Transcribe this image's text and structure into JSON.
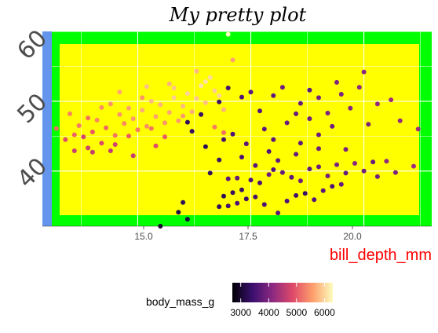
{
  "chart_data": {
    "type": "scatter",
    "title": "My pretty plot",
    "xlabel": "bill_depth_mm",
    "ylabel": "",
    "xlim": [
      13.1,
      21.5
    ],
    "ylim": [
      32.1,
      60.0
    ],
    "x_ticks": [
      15.0,
      17.5,
      20.0
    ],
    "x_tick_labels": [
      "15.0",
      "17.5",
      "20.0"
    ],
    "y_ticks": [
      40,
      50,
      60
    ],
    "y_tick_labels": [
      "40",
      "50",
      "60"
    ],
    "grid": true,
    "legend": {
      "title": "body_mass_g",
      "position": "bottom",
      "type": "colorbar",
      "min": 2700,
      "max": 6300,
      "ticks": [
        3000,
        4000,
        5000,
        6000
      ],
      "tick_labels": [
        "3000",
        "4000",
        "5000",
        "6000"
      ]
    },
    "colors": {
      "panel_background": "#ffff00",
      "plot_background": "#00ff00",
      "y_axis_strip": "#6495ed",
      "gridline": "#ffffff",
      "xlabel": "#ff0000",
      "colormap": "magma"
    },
    "points": [
      [
        15.5,
        32.1,
        3000
      ],
      [
        16.1,
        33.1,
        3100
      ],
      [
        15.9,
        34.1,
        3200
      ],
      [
        16.0,
        35.5,
        3300
      ],
      [
        16.9,
        36.4,
        3300
      ],
      [
        17.1,
        36.9,
        3400
      ],
      [
        17.3,
        37.3,
        3400
      ],
      [
        16.8,
        34.9,
        3350
      ],
      [
        17.0,
        35.0,
        3500
      ],
      [
        17.2,
        35.4,
        3600
      ],
      [
        17.4,
        36.0,
        3450
      ],
      [
        17.6,
        36.3,
        3500
      ],
      [
        17.8,
        35.2,
        3550
      ],
      [
        18.1,
        34.0,
        3700
      ],
      [
        18.3,
        35.7,
        3600
      ],
      [
        18.5,
        36.5,
        3500
      ],
      [
        18.7,
        36.8,
        3400
      ],
      [
        18.9,
        35.9,
        3650
      ],
      [
        19.1,
        37.2,
        3700
      ],
      [
        19.3,
        37.8,
        3600
      ],
      [
        19.5,
        38.1,
        3800
      ],
      [
        17.0,
        38.9,
        3750
      ],
      [
        17.2,
        39.0,
        3800
      ],
      [
        17.5,
        38.7,
        3600
      ],
      [
        17.7,
        38.3,
        3550
      ],
      [
        17.9,
        39.5,
        3900
      ],
      [
        18.0,
        40.2,
        3650
      ],
      [
        18.2,
        39.8,
        3800
      ],
      [
        18.4,
        39.1,
        3700
      ],
      [
        18.6,
        38.6,
        3900
      ],
      [
        18.8,
        40.3,
        3750
      ],
      [
        19.0,
        40.6,
        3850
      ],
      [
        19.2,
        39.3,
        3950
      ],
      [
        19.4,
        40.9,
        4000
      ],
      [
        19.6,
        39.7,
        3800
      ],
      [
        19.8,
        41.1,
        4100
      ],
      [
        20.0,
        40.0,
        3900
      ],
      [
        20.3,
        39.2,
        3950
      ],
      [
        20.5,
        41.4,
        4200
      ],
      [
        20.7,
        39.8,
        4000
      ],
      [
        21.1,
        40.7,
        4300
      ],
      [
        20.2,
        41.3,
        3850
      ],
      [
        18.1,
        41.5,
        3750
      ],
      [
        17.6,
        40.8,
        3700
      ],
      [
        16.6,
        39.7,
        3350
      ],
      [
        16.8,
        41.6,
        3400
      ],
      [
        17.3,
        42.0,
        3550
      ],
      [
        17.9,
        42.8,
        3650
      ],
      [
        18.5,
        42.4,
        3800
      ],
      [
        19.0,
        43.2,
        3900
      ],
      [
        19.6,
        43.1,
        4000
      ],
      [
        17.4,
        43.9,
        3700
      ],
      [
        16.9,
        44.5,
        3500
      ],
      [
        17.1,
        45.3,
        3600
      ],
      [
        17.8,
        46.0,
        3750
      ],
      [
        18.3,
        46.9,
        3850
      ],
      [
        18.8,
        47.5,
        3900
      ],
      [
        19.2,
        48.3,
        4000
      ],
      [
        19.7,
        49.0,
        4100
      ],
      [
        20.3,
        49.6,
        4200
      ],
      [
        20.6,
        50.2,
        4300
      ],
      [
        19.0,
        50.5,
        3950
      ],
      [
        18.6,
        49.7,
        3800
      ],
      [
        17.5,
        51.3,
        3700
      ],
      [
        18.2,
        52.0,
        3900
      ],
      [
        19.4,
        52.7,
        4050
      ],
      [
        20.0,
        54.2,
        4100
      ],
      [
        19.9,
        52.0,
        4150
      ],
      [
        19.5,
        51.0,
        4000
      ],
      [
        18.8,
        51.6,
        3700
      ],
      [
        17.0,
        51.9,
        3500
      ],
      [
        16.8,
        49.9,
        3450
      ],
      [
        17.3,
        50.6,
        3600
      ],
      [
        18.0,
        50.8,
        3750
      ],
      [
        16.4,
        48.1,
        3400
      ],
      [
        16.1,
        47.0,
        3350
      ],
      [
        17.7,
        48.6,
        3650
      ],
      [
        18.5,
        48.2,
        3800
      ],
      [
        19.3,
        46.4,
        3900
      ],
      [
        20.1,
        46.7,
        4000
      ],
      [
        20.8,
        47.2,
        4200
      ],
      [
        21.2,
        46.0,
        4300
      ],
      [
        19.0,
        45.2,
        3850
      ],
      [
        18.0,
        44.5,
        3700
      ],
      [
        16.5,
        43.5,
        3300
      ],
      [
        16.2,
        45.7,
        3400
      ],
      [
        18.6,
        44.0,
        3750
      ],
      [
        13.2,
        46.1,
        5200
      ],
      [
        13.4,
        44.5,
        4900
      ],
      [
        13.6,
        45.2,
        5100
      ],
      [
        13.7,
        46.5,
        5300
      ],
      [
        13.8,
        44.9,
        4800
      ],
      [
        13.9,
        43.3,
        4700
      ],
      [
        14.0,
        45.6,
        5000
      ],
      [
        14.1,
        47.3,
        5400
      ],
      [
        14.2,
        44.0,
        4850
      ],
      [
        14.3,
        46.2,
        5150
      ],
      [
        14.4,
        42.9,
        4600
      ],
      [
        14.5,
        45.1,
        5250
      ],
      [
        14.6,
        48.1,
        5500
      ],
      [
        14.7,
        46.8,
        5400
      ],
      [
        14.8,
        49.0,
        5600
      ],
      [
        14.9,
        47.5,
        5550
      ],
      [
        15.0,
        45.9,
        5300
      ],
      [
        15.1,
        48.7,
        5700
      ],
      [
        15.2,
        46.4,
        5450
      ],
      [
        15.3,
        50.0,
        5800
      ],
      [
        15.4,
        47.8,
        5600
      ],
      [
        15.5,
        49.5,
        5750
      ],
      [
        15.6,
        46.9,
        5500
      ],
      [
        15.7,
        48.4,
        5650
      ],
      [
        15.8,
        50.5,
        5950
      ],
      [
        15.9,
        47.2,
        5550
      ],
      [
        16.0,
        49.3,
        5800
      ],
      [
        16.1,
        51.1,
        6000
      ],
      [
        16.2,
        48.5,
        5700
      ],
      [
        16.3,
        50.4,
        5900
      ],
      [
        16.4,
        52.2,
        6100
      ],
      [
        16.5,
        49.8,
        5850
      ],
      [
        16.6,
        53.4,
        6050
      ],
      [
        16.7,
        51.5,
        5950
      ],
      [
        16.8,
        50.8,
        6000
      ],
      [
        16.9,
        48.8,
        5750
      ],
      [
        17.0,
        59.6,
        6300
      ],
      [
        17.1,
        55.9,
        5600
      ],
      [
        16.3,
        54.3,
        5800
      ],
      [
        15.7,
        52.5,
        5750
      ],
      [
        15.1,
        50.5,
        5500
      ],
      [
        14.6,
        51.3,
        5650
      ],
      [
        14.2,
        49.1,
        5450
      ],
      [
        13.9,
        47.6,
        5200
      ],
      [
        13.5,
        48.2,
        5350
      ],
      [
        15.3,
        46.1,
        5250
      ],
      [
        16.0,
        47.9,
        5550
      ],
      [
        16.7,
        46.3,
        5300
      ],
      [
        14.5,
        43.8,
        4750
      ],
      [
        14.0,
        42.7,
        4650
      ],
      [
        15.6,
        44.9,
        5050
      ],
      [
        16.9,
        45.5,
        5200
      ],
      [
        14.4,
        49.6,
        5500
      ],
      [
        15.8,
        51.9,
        5900
      ],
      [
        16.5,
        52.8,
        6100
      ],
      [
        15.2,
        52.1,
        5850
      ],
      [
        14.8,
        45.0,
        5050
      ],
      [
        13.6,
        42.9,
        4700
      ],
      [
        14.9,
        42.2,
        4650
      ],
      [
        15.4,
        43.6,
        4900
      ]
    ]
  }
}
